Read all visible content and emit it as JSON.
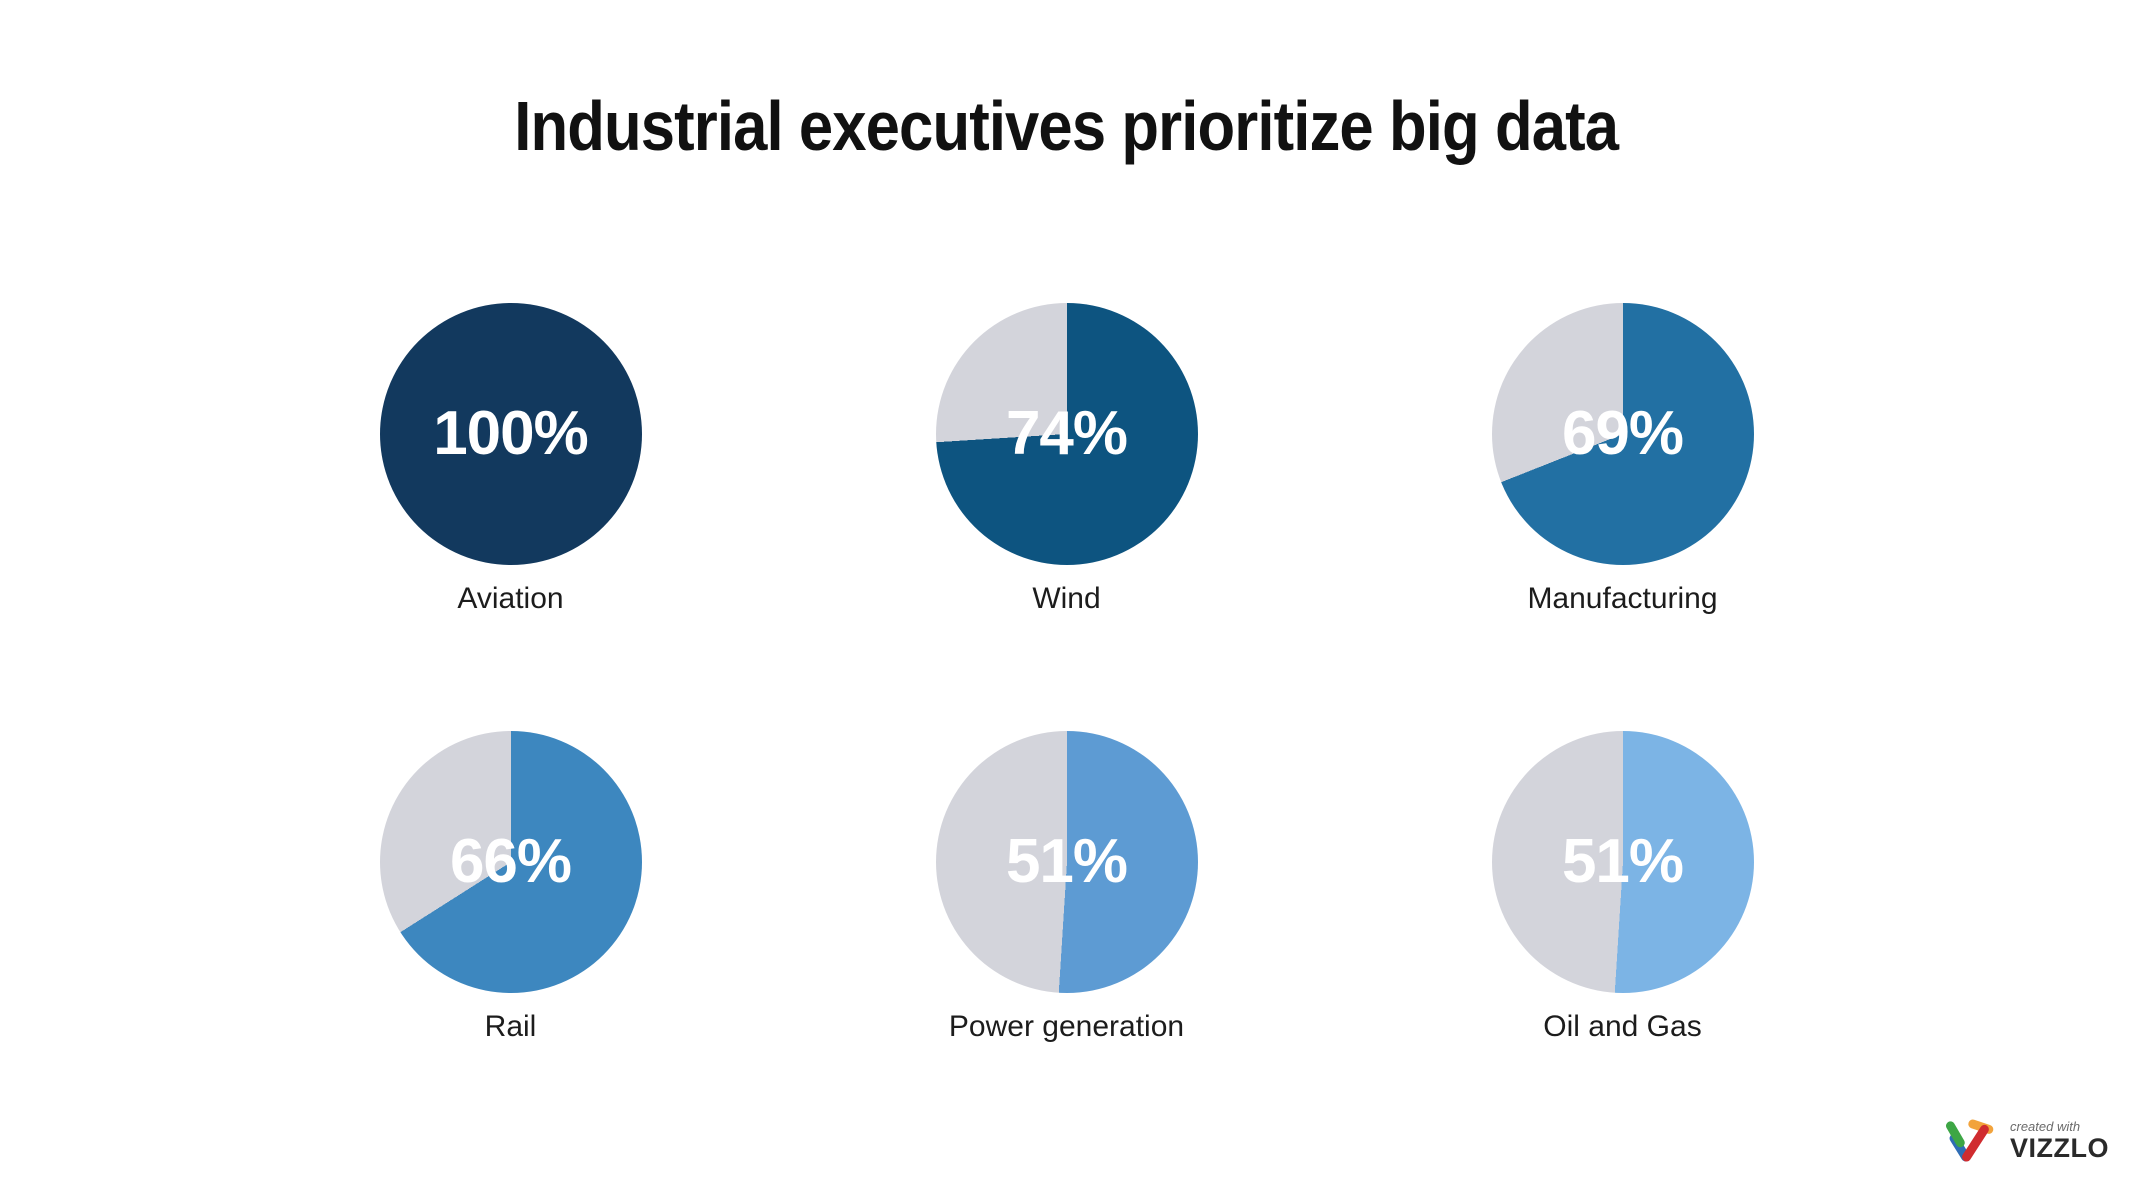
{
  "title": "Industrial executives prioritize big data",
  "chart_data": {
    "type": "pie",
    "layout": "grid-2-rows-3-cols",
    "unit": "%",
    "remainder_color": "#d3d4db",
    "background": "#ffffff",
    "categories": [
      "Aviation",
      "Wind",
      "Manufacturing",
      "Rail",
      "Power generation",
      "Oil and Gas"
    ],
    "values": [
      100,
      74,
      69,
      66,
      51,
      51
    ],
    "items": [
      {
        "label": "Aviation",
        "value": 100,
        "color": "#12395e"
      },
      {
        "label": "Wind",
        "value": 74,
        "color": "#0d5480"
      },
      {
        "label": "Manufacturing",
        "value": 69,
        "color": "#2270a3"
      },
      {
        "label": "Rail",
        "value": 66,
        "color": "#3d87bf"
      },
      {
        "label": "Power generation",
        "value": 51,
        "color": "#5d9bd3"
      },
      {
        "label": "Oil and Gas",
        "value": 51,
        "color": "#7cb4e5"
      }
    ]
  },
  "text_colors": {
    "title": "#111111",
    "category_label": "#1c1c1c",
    "value_label": "#ffffff"
  },
  "footer": {
    "created_with": "created with",
    "brand": "VIZZLO",
    "logo_colors": {
      "green": "#3da645",
      "yellow": "#f2a33c",
      "red": "#d02c2f",
      "blue": "#2f6db5"
    }
  }
}
